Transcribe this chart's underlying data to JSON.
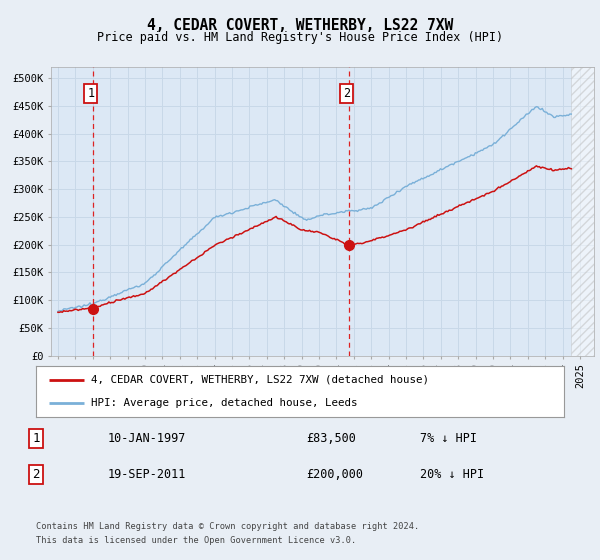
{
  "title": "4, CEDAR COVERT, WETHERBY, LS22 7XW",
  "subtitle": "Price paid vs. HM Land Registry's House Price Index (HPI)",
  "ylim": [
    0,
    520000
  ],
  "yticks": [
    0,
    50000,
    100000,
    150000,
    200000,
    250000,
    300000,
    350000,
    400000,
    450000,
    500000
  ],
  "ytick_labels": [
    "£0",
    "£50K",
    "£100K",
    "£150K",
    "£200K",
    "£250K",
    "£300K",
    "£350K",
    "£400K",
    "£450K",
    "£500K"
  ],
  "xlim_start": 1994.6,
  "xlim_end": 2025.8,
  "data_end": 2024.5,
  "background_color": "#e8eef5",
  "plot_bg_color": "#dce8f5",
  "grid_color": "#c8d8e8",
  "purchase1_x": 1997.04,
  "purchase1_y": 83500,
  "purchase1_label": "1",
  "purchase1_date": "10-JAN-1997",
  "purchase1_price": "£83,500",
  "purchase1_hpi": "7% ↓ HPI",
  "purchase2_x": 2011.72,
  "purchase2_y": 200000,
  "purchase2_label": "2",
  "purchase2_date": "19-SEP-2011",
  "purchase2_price": "£200,000",
  "purchase2_hpi": "20% ↓ HPI",
  "hpi_color": "#7ab0d8",
  "property_color": "#cc1111",
  "legend_label1": "4, CEDAR COVERT, WETHERBY, LS22 7XW (detached house)",
  "legend_label2": "HPI: Average price, detached house, Leeds",
  "footer1": "Contains HM Land Registry data © Crown copyright and database right 2024.",
  "footer2": "This data is licensed under the Open Government Licence v3.0.",
  "dashed_line_color": "#dd2222"
}
